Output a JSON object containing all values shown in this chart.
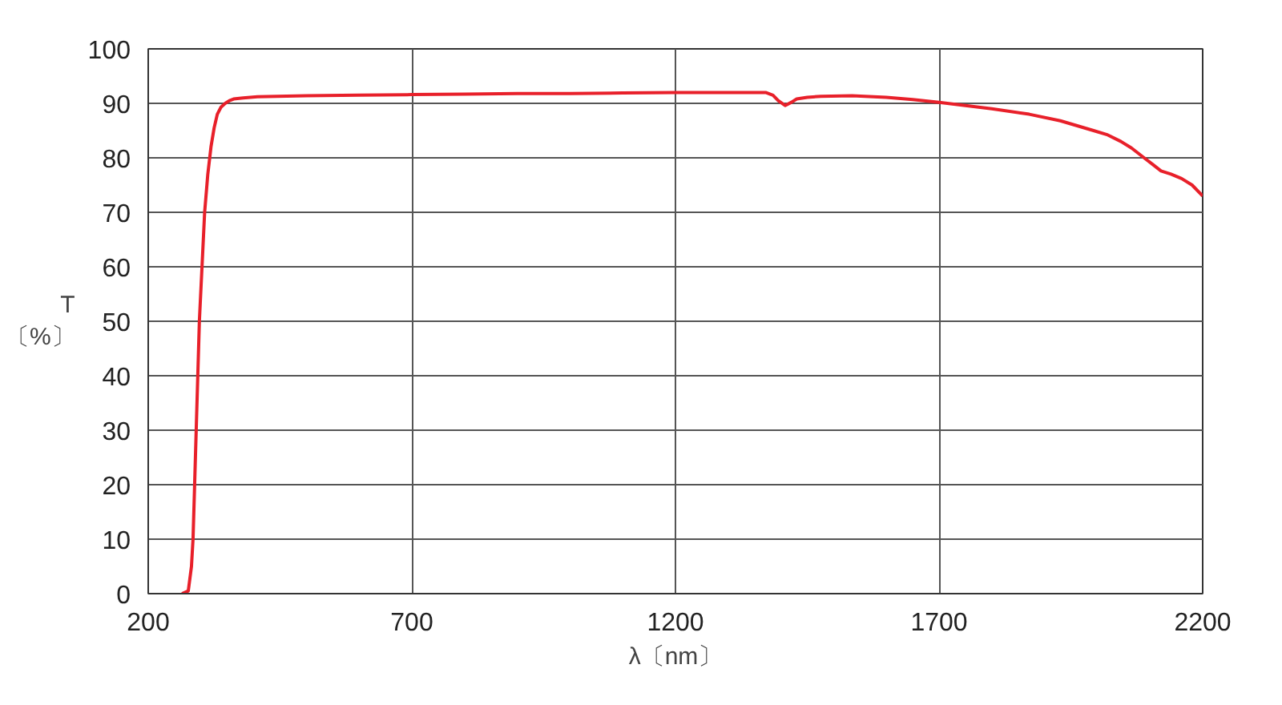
{
  "chart_data": {
    "type": "line",
    "xlabel": "λ〔nm〕",
    "ylabel": "T\n〔%〕",
    "series": [
      {
        "color": "#e8202a",
        "x": [
          264,
          276,
          282,
          285,
          288,
          291,
          294,
          297,
          302,
          307,
          313,
          319,
          325,
          331,
          338,
          346,
          354,
          362,
          380,
          407,
          500,
          600,
          700,
          800,
          900,
          1000,
          1100,
          1200,
          1300,
          1371,
          1385,
          1395,
          1408,
          1420,
          1430,
          1450,
          1476,
          1535,
          1600,
          1650,
          1700,
          1750,
          1800,
          1871,
          1930,
          1993,
          2020,
          2045,
          2065,
          2085,
          2105,
          2121,
          2140,
          2160,
          2180,
          2200
        ],
        "values": [
          0,
          0.5,
          5,
          10,
          20,
          30,
          40,
          50,
          60,
          70,
          77,
          82,
          85.5,
          88,
          89.3,
          90,
          90.5,
          90.8,
          91,
          91.2,
          91.4,
          91.5,
          91.6,
          91.7,
          91.8,
          91.8,
          91.9,
          92,
          92,
          92,
          91.5,
          90.5,
          89.6,
          90.2,
          90.8,
          91.1,
          91.3,
          91.4,
          91.1,
          90.7,
          90.2,
          89.6,
          89,
          88,
          86.8,
          85,
          84.2,
          83,
          81.8,
          80.3,
          78.8,
          77.6,
          77,
          76.2,
          75,
          73
        ]
      }
    ],
    "xlim": [
      200,
      2200
    ],
    "ylim": [
      0,
      100
    ],
    "xticks": [
      200,
      700,
      1200,
      1700,
      2200
    ],
    "yticks": [
      0,
      10,
      20,
      30,
      40,
      50,
      60,
      70,
      80,
      90,
      100
    ],
    "grid": true,
    "marker": "none",
    "line_style": "solid"
  }
}
